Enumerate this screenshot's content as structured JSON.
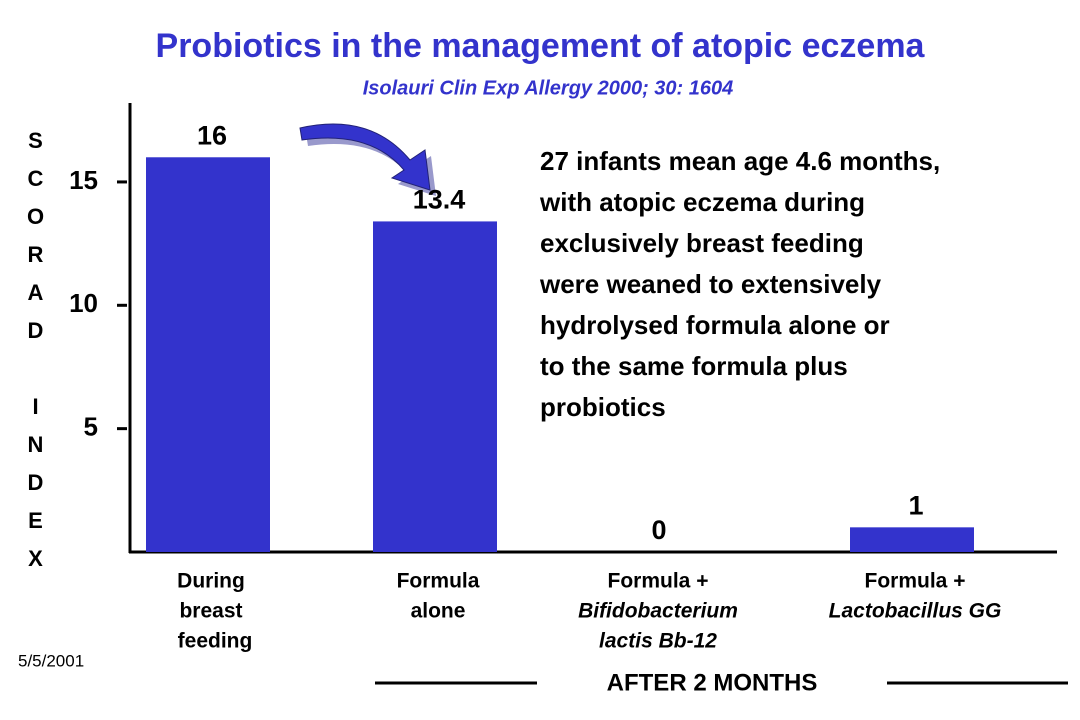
{
  "chart_data": {
    "type": "bar",
    "title": "Probiotics in the management of atopic eczema",
    "subtitle": "Isolauri  Clin Exp Allergy 2000; 30: 1604",
    "y_label": "SCORAD INDEX",
    "categories": [
      [
        "During",
        "breast",
        "feeding"
      ],
      [
        "Formula",
        "alone"
      ],
      [
        "Formula +",
        "Bifidobacterium",
        "lactis Bb-12"
      ],
      [
        "Formula +",
        "Lactobacillus GG"
      ]
    ],
    "values": [
      16,
      13.4,
      0,
      1
    ],
    "color": "#3333cc",
    "ylim": [
      0,
      18.2
    ],
    "yticks": [
      5,
      10,
      15
    ],
    "annotation": [
      "27 infants mean age 4.6 months,",
      "with atopic eczema during",
      "exclusively breast feeding",
      "were weaned to extensively",
      "hydrolysed formula alone or",
      "to the same formula plus",
      "probiotics"
    ],
    "x_label": "AFTER  2  MONTHS",
    "date": "5/5/2001"
  }
}
